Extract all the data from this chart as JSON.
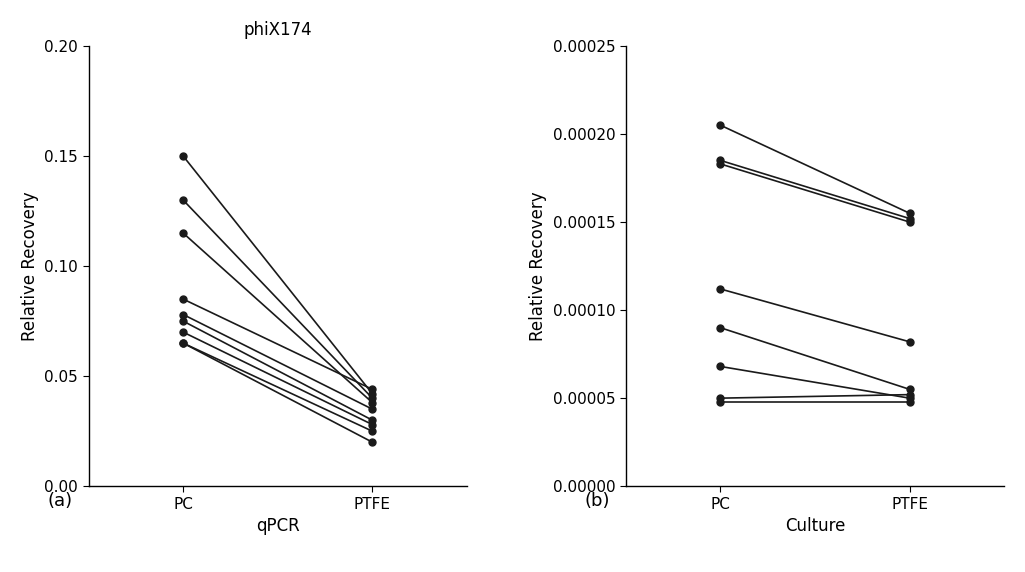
{
  "title": "phiX174",
  "panel_a": {
    "label": "(a)",
    "xlabel": "qPCR",
    "ylabel": "Relative Recovery",
    "xlim": [
      -0.5,
      1.5
    ],
    "ylim": [
      0.0,
      0.2
    ],
    "yticks": [
      0.0,
      0.05,
      0.1,
      0.15,
      0.2
    ],
    "xtick_labels": [
      "PC",
      "PTFE"
    ],
    "pairs": [
      [
        0.15,
        0.042
      ],
      [
        0.13,
        0.04
      ],
      [
        0.115,
        0.038
      ],
      [
        0.085,
        0.044
      ],
      [
        0.078,
        0.035
      ],
      [
        0.075,
        0.03
      ],
      [
        0.07,
        0.028
      ],
      [
        0.065,
        0.025
      ],
      [
        0.065,
        0.02
      ]
    ]
  },
  "panel_b": {
    "label": "(b)",
    "xlabel": "Culture",
    "ylabel": "Relative Recovery",
    "xlim": [
      -0.5,
      1.5
    ],
    "ylim": [
      0.0,
      0.00025
    ],
    "yticks": [
      0.0,
      5e-05,
      0.0001,
      0.00015,
      0.0002,
      0.00025
    ],
    "xtick_labels": [
      "PC",
      "PTFE"
    ],
    "pairs": [
      [
        0.000205,
        0.000155
      ],
      [
        0.000185,
        0.000152
      ],
      [
        0.000183,
        0.00015
      ],
      [
        0.000112,
        8.2e-05
      ],
      [
        9e-05,
        5.5e-05
      ],
      [
        6.8e-05,
        5e-05
      ],
      [
        5e-05,
        5.2e-05
      ],
      [
        4.8e-05,
        4.8e-05
      ]
    ]
  },
  "line_color": "#1a1a1a",
  "marker_color": "#1a1a1a",
  "marker_size": 5,
  "line_width": 1.2,
  "bg_color": "#ffffff",
  "title_fontsize": 12,
  "label_fontsize": 12,
  "tick_fontsize": 11,
  "panel_label_fontsize": 13
}
